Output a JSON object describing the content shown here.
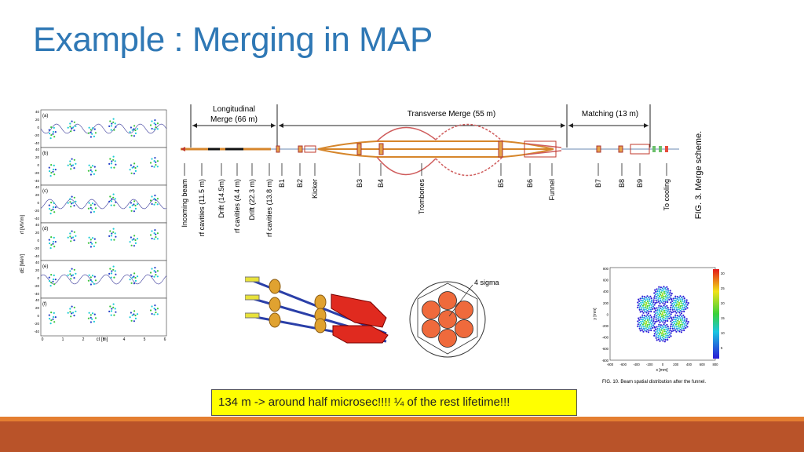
{
  "slide": {
    "title": "Example : Merging in MAP",
    "caption": "134 m -> around half microsec!!!! ¼ of the rest lifetime!!!"
  },
  "left_figure": {
    "panel_labels": [
      "(a)",
      "(b)",
      "(c)",
      "(d)",
      "(e)",
      "(f)"
    ],
    "y_axis_label_top": "rf [MV/m]",
    "y_axis_label_bottom": "dE [MeV]",
    "x_axis_label": "ct [m]",
    "x_ticks": [
      "0",
      "1",
      "2",
      "3",
      "4",
      "5",
      "6"
    ],
    "y_ticks": [
      "40",
      "20",
      "0",
      "-20",
      "-40"
    ]
  },
  "merge_scheme": {
    "sections": [
      {
        "label_line1": "Longitudinal",
        "label_line2": "Merge (66 m)"
      },
      {
        "label_line1": "Transverse Merge (55 m)",
        "label_line2": ""
      },
      {
        "label_line1": "Matching (13 m)",
        "label_line2": ""
      }
    ],
    "elements": [
      "Incoming beam",
      "rf cavities (11.5 m)",
      "Drift (14.5m)",
      "rf cavities (4.4 m)",
      "Drift (22.3 m)",
      "rf cavities (13.8 m)",
      "B1",
      "B2",
      "Kicker",
      "B3",
      "B4",
      "Trombones",
      "B5",
      "B6",
      "Funnel",
      "B7",
      "B8",
      "B9",
      "To cooling"
    ],
    "fig_caption": "FIG. 3.   Merge scheme."
  },
  "circle_figure": {
    "label": "4 sigma"
  },
  "scatter_figure": {
    "y_label": "y [mm]",
    "x_label": "x [mm]",
    "x_ticks": [
      "-800",
      "-600",
      "-400",
      "-200",
      "0",
      "200",
      "400",
      "600",
      "800"
    ],
    "y_ticks": [
      "800",
      "600",
      "400",
      "200",
      "0",
      "-200",
      "-400",
      "-600",
      "-800"
    ],
    "colorbar_ticks": [
      "30",
      "25",
      "20",
      "15",
      "10",
      "5"
    ],
    "caption": "FIG. 10.   Beam spatial distribution after the funnel."
  },
  "colors": {
    "title": "#2f78b5",
    "caption_bg": "#ffff00",
    "bar_top": "#e47e31",
    "bar_bottom": "#b95329"
  }
}
